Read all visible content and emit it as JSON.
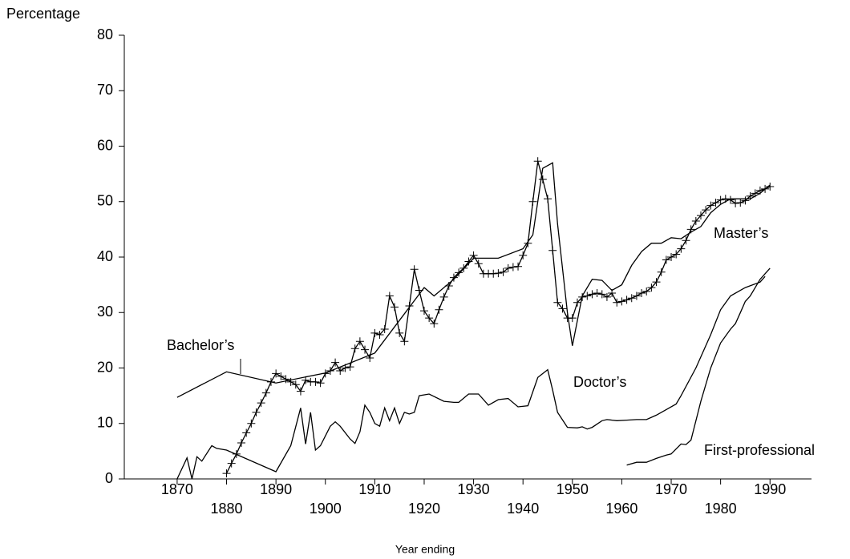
{
  "chart_data": {
    "type": "line",
    "ylabel": "Percentage",
    "xlabel": "Year ending",
    "xlim": [
      1859.3,
      1998.4
    ],
    "xticks": [
      1870,
      1880,
      1890,
      1900,
      1910,
      1920,
      1930,
      1940,
      1950,
      1960,
      1970,
      1980,
      1990
    ],
    "ylim": [
      0,
      80
    ],
    "yticks": [
      0,
      10,
      20,
      30,
      40,
      50,
      60,
      70,
      80
    ],
    "series": [
      {
        "name": "Bachelor’s",
        "color": "#000000",
        "x": [
          1870,
          1880,
          1890,
          1900,
          1910,
          1920,
          1922,
          1926,
          1930,
          1935,
          1940,
          1942,
          1944,
          1946,
          1947,
          1949,
          1950,
          1952,
          1954,
          1956,
          1958,
          1960,
          1962,
          1964,
          1966,
          1968,
          1970,
          1972,
          1974,
          1976,
          1978,
          1980,
          1982,
          1984,
          1986,
          1988,
          1990
        ],
        "values": [
          14.7,
          19.3,
          17.3,
          19.1,
          22.7,
          34.5,
          33,
          36,
          39.8,
          39.8,
          41.5,
          44,
          56,
          57,
          46,
          30,
          24,
          33,
          36,
          35.8,
          34,
          35,
          38.5,
          41,
          42.5,
          42.5,
          43.5,
          43.3,
          44.5,
          45.5,
          48,
          49.5,
          50.5,
          50.5,
          50.5,
          51.5,
          53
        ]
      },
      {
        "name": "Master’s",
        "color": "#000000",
        "marker": "plus",
        "x": [
          1880,
          1881,
          1882,
          1883,
          1884,
          1885,
          1886,
          1887,
          1888,
          1889,
          1890,
          1891,
          1892,
          1893,
          1894,
          1895,
          1896,
          1897,
          1898,
          1899,
          1900,
          1901,
          1902,
          1903,
          1904,
          1905,
          1906,
          1907,
          1908,
          1909,
          1910,
          1911,
          1912,
          1913,
          1914,
          1915,
          1916,
          1917,
          1918,
          1919,
          1920,
          1921,
          1922,
          1923,
          1924,
          1925,
          1926,
          1927,
          1928,
          1929,
          1930,
          1931,
          1932,
          1933,
          1934,
          1935,
          1936,
          1937,
          1938,
          1939,
          1940,
          1941,
          1942,
          1943,
          1944,
          1945,
          1946,
          1947,
          1948,
          1949,
          1950,
          1951,
          1952,
          1953,
          1954,
          1955,
          1956,
          1957,
          1958,
          1959,
          1960,
          1961,
          1962,
          1963,
          1964,
          1965,
          1966,
          1967,
          1968,
          1969,
          1970,
          1971,
          1972,
          1973,
          1974,
          1975,
          1976,
          1977,
          1978,
          1979,
          1980,
          1981,
          1982,
          1983,
          1984,
          1985,
          1986,
          1987,
          1988,
          1989,
          1990
        ],
        "values": [
          1,
          2.8,
          4.5,
          6.5,
          8.3,
          10,
          12,
          13.7,
          15.5,
          17.5,
          19,
          18.5,
          18,
          17.5,
          17,
          15.8,
          17.8,
          17.5,
          17.5,
          17.3,
          19,
          19.5,
          21,
          19.5,
          20,
          20.2,
          23.5,
          24.8,
          23.3,
          21.8,
          26.3,
          26,
          27,
          33,
          31,
          26.3,
          24.8,
          31.2,
          37.8,
          34,
          30.3,
          29,
          28,
          30.5,
          32.8,
          34.8,
          36.3,
          37.2,
          38,
          39.2,
          40.3,
          38.8,
          37,
          37,
          37,
          37.1,
          37.3,
          38,
          38.2,
          38.3,
          40.3,
          42.5,
          50,
          57.3,
          54,
          50.5,
          41.2,
          31.8,
          30.7,
          29,
          29,
          31.8,
          32.8,
          33,
          33.3,
          33.5,
          33.3,
          32.8,
          33.5,
          31.8,
          32,
          32.3,
          32.6,
          33,
          33.5,
          33.8,
          34.5,
          35.5,
          37.3,
          39.5,
          40,
          40.5,
          41.5,
          43,
          45,
          46.5,
          47.5,
          48.5,
          49.3,
          49.8,
          50.3,
          50.5,
          50.3,
          49.7,
          49.8,
          50.2,
          51,
          51.5,
          52,
          52.3,
          52.7
        ]
      },
      {
        "name": "Doctor’s",
        "color": "#000000",
        "x": [
          1870,
          1872,
          1873,
          1874,
          1875,
          1877,
          1878,
          1880,
          1890,
          1893,
          1895,
          1896,
          1897,
          1898,
          1899,
          1901,
          1902,
          1903,
          1905,
          1906,
          1907,
          1908,
          1909,
          1910,
          1911,
          1912,
          1913,
          1914,
          1915,
          1916,
          1917,
          1918,
          1919,
          1921,
          1924,
          1926,
          1927,
          1929,
          1931,
          1933,
          1935,
          1937,
          1939,
          1941,
          1943,
          1945,
          1946,
          1947,
          1949,
          1951,
          1952,
          1953,
          1954,
          1956,
          1957,
          1959,
          1961,
          1963,
          1965,
          1967,
          1968,
          1969,
          1971,
          1972,
          1975,
          1978,
          1980,
          1982,
          1985,
          1988,
          1989
        ],
        "values": [
          0,
          3.8,
          0,
          4,
          3.2,
          6,
          5.5,
          5.2,
          1.3,
          6,
          12.8,
          6.3,
          12,
          5.2,
          6,
          9.5,
          10.3,
          9.5,
          7.2,
          6.4,
          8.5,
          13.3,
          12,
          10,
          9.5,
          12.8,
          10.5,
          12.8,
          10,
          12,
          11.7,
          12,
          15,
          15.3,
          14,
          13.8,
          13.8,
          15.3,
          15.3,
          13.3,
          14.3,
          14.5,
          13,
          13.2,
          18.3,
          19.7,
          16,
          12,
          9.3,
          9.2,
          9.4,
          9,
          9.3,
          10.5,
          10.7,
          10.5,
          10.6,
          10.7,
          10.7,
          11.5,
          12,
          12.5,
          13.5,
          15,
          20,
          26,
          30.5,
          33,
          34.5,
          35.5,
          36.5
        ]
      },
      {
        "name": "First-professional",
        "color": "#000000",
        "x": [
          1961,
          1963,
          1965,
          1967,
          1969,
          1970,
          1972,
          1973,
          1974,
          1976,
          1978,
          1980,
          1982,
          1983,
          1984,
          1985,
          1986,
          1987,
          1988,
          1989,
          1990
        ],
        "values": [
          2.5,
          3,
          3,
          3.7,
          4.3,
          4.5,
          6.3,
          6.2,
          7,
          14,
          20,
          24.5,
          27,
          28,
          30,
          32,
          33,
          34.5,
          36,
          37,
          38
        ]
      }
    ]
  }
}
